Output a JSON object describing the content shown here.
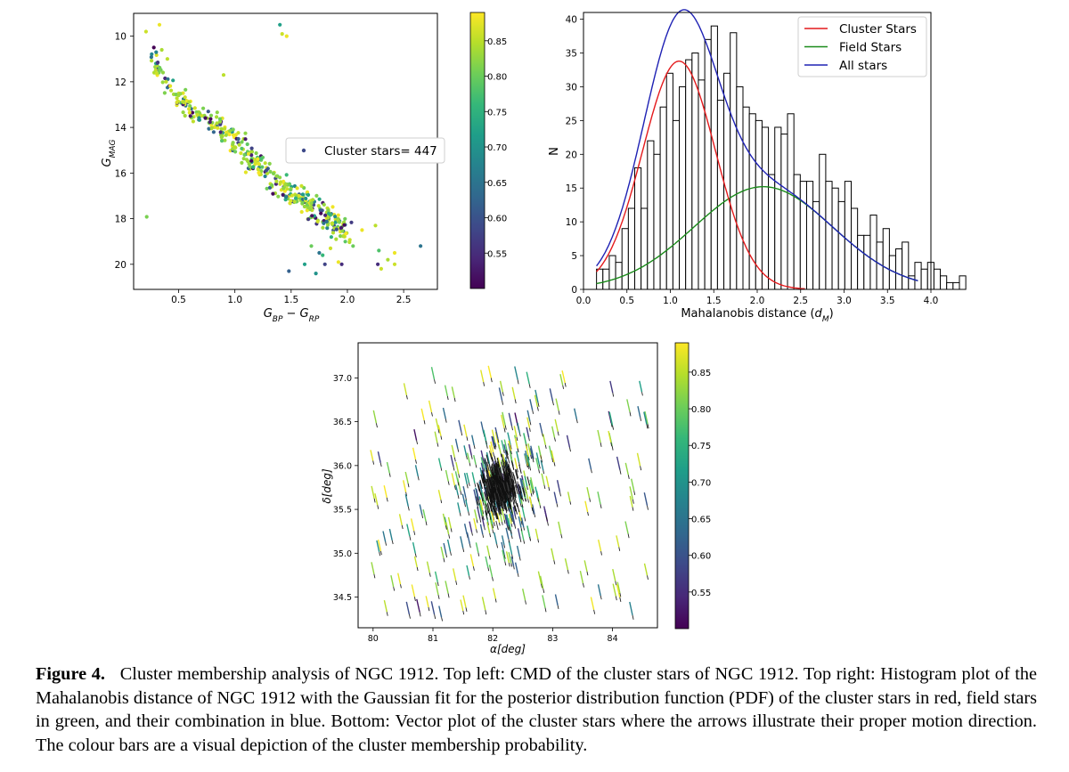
{
  "caption": {
    "label": "Figure 4.",
    "text": "Cluster membership analysis of NGC 1912. Top left: CMD of the cluster stars of NGC 1912. Top right: Histogram plot of the Mahalanobis distance of NGC 1912 with the Gaussian fit for the posterior distribution function (PDF) of the cluster stars in red, field stars in green, and their combination in blue. Bottom: Vector plot of the cluster stars where the arrows illustrate their proper motion direction. The colour bars are a visual depiction of the cluster membership probability."
  },
  "colormap": {
    "name": "viridis",
    "stops": [
      "#440154",
      "#482878",
      "#3e4989",
      "#31688e",
      "#26828e",
      "#1f9e89",
      "#35b779",
      "#6ece58",
      "#b5de2b",
      "#fde725"
    ]
  },
  "chart_data": [
    {
      "type": "scatter",
      "panel": "top-left",
      "xlabel": "G_BP − G_RP",
      "ylabel": "G_MAG",
      "xlim": [
        0.1,
        2.8
      ],
      "ylim": [
        21.1,
        9.0
      ],
      "y_inverted": true,
      "xticks": [
        "0.5",
        "1.0",
        "1.5",
        "2.0",
        "2.5"
      ],
      "yticks": [
        "10",
        "12",
        "14",
        "16",
        "18",
        "20"
      ],
      "legend": {
        "label": "Cluster stars= 447",
        "placement": "center-right"
      },
      "colorbar": {
        "range": [
          0.5,
          0.89
        ],
        "ticks": [
          "0.55",
          "0.60",
          "0.65",
          "0.70",
          "0.75",
          "0.80",
          "0.85"
        ]
      },
      "colour_by": "membership probability",
      "n_points": 447,
      "sequence": {
        "x": [
          0.25,
          0.4,
          0.6,
          0.8,
          1.0,
          1.2,
          1.4,
          1.6,
          1.8,
          2.0
        ],
        "y": [
          10.6,
          12.3,
          13.2,
          13.8,
          14.6,
          15.6,
          16.5,
          17.2,
          17.8,
          18.6
        ]
      },
      "outliers": [
        {
          "x": 0.33,
          "y": 9.5,
          "p": 0.88
        },
        {
          "x": 0.21,
          "y": 9.8,
          "p": 0.86
        },
        {
          "x": 1.4,
          "y": 9.5,
          "p": 0.72
        },
        {
          "x": 1.42,
          "y": 9.9,
          "p": 0.86
        },
        {
          "x": 1.46,
          "y": 10.0,
          "p": 0.88
        },
        {
          "x": 0.28,
          "y": 10.5,
          "p": 0.5
        },
        {
          "x": 0.35,
          "y": 10.6,
          "p": 0.84
        },
        {
          "x": 0.3,
          "y": 10.7,
          "p": 0.68
        },
        {
          "x": 0.4,
          "y": 11.0,
          "p": 0.85
        },
        {
          "x": 0.9,
          "y": 11.7,
          "p": 0.85
        },
        {
          "x": 2.65,
          "y": 19.2,
          "p": 0.65
        },
        {
          "x": 2.42,
          "y": 20.0,
          "p": 0.86
        },
        {
          "x": 2.42,
          "y": 19.5,
          "p": 0.88
        },
        {
          "x": 2.28,
          "y": 19.4,
          "p": 0.78
        },
        {
          "x": 2.27,
          "y": 20.0,
          "p": 0.55
        },
        {
          "x": 2.3,
          "y": 20.2,
          "p": 0.86
        },
        {
          "x": 2.13,
          "y": 18.5,
          "p": 0.88
        },
        {
          "x": 2.25,
          "y": 18.3,
          "p": 0.85
        },
        {
          "x": 1.48,
          "y": 20.3,
          "p": 0.62
        },
        {
          "x": 1.72,
          "y": 20.4,
          "p": 0.7
        },
        {
          "x": 1.62,
          "y": 20.0,
          "p": 0.72
        },
        {
          "x": 1.8,
          "y": 20.0,
          "p": 0.58
        },
        {
          "x": 1.95,
          "y": 20.0,
          "p": 0.55
        },
        {
          "x": 2.05,
          "y": 19.2,
          "p": 0.8
        },
        {
          "x": 1.75,
          "y": 19.5,
          "p": 0.65
        },
        {
          "x": 1.85,
          "y": 19.3,
          "p": 0.86
        },
        {
          "x": 1.92,
          "y": 19.9,
          "p": 0.88
        },
        {
          "x": 1.68,
          "y": 19.2,
          "p": 0.8
        },
        {
          "x": 1.78,
          "y": 19.6,
          "p": 0.76
        },
        {
          "x": 1.9,
          "y": 18.9,
          "p": 0.84
        },
        {
          "x": 2.36,
          "y": 19.8,
          "p": 0.84
        }
      ]
    },
    {
      "type": "bar",
      "panel": "top-right",
      "xlabel": "Mahalanobis distance (d_M)",
      "ylabel": "N",
      "xlim": [
        0.0,
        4.0
      ],
      "ylim": [
        0,
        41
      ],
      "xticks": [
        "0.0",
        "0.5",
        "1.0",
        "1.5",
        "2.0",
        "2.5",
        "3.0",
        "3.5",
        "4.0"
      ],
      "yticks": [
        "0",
        "5",
        "10",
        "15",
        "20",
        "25",
        "30",
        "35",
        "40"
      ],
      "bin_start": 0.15,
      "bin_width": 0.0733,
      "values": [
        3,
        3,
        5,
        4,
        9,
        12,
        18,
        12,
        22,
        20,
        27,
        32,
        25,
        30,
        34,
        35,
        31,
        37,
        39,
        28,
        32,
        38,
        30,
        27,
        26,
        25,
        24,
        17,
        24,
        23,
        26,
        17,
        16,
        16,
        13,
        20,
        16,
        15,
        13,
        16,
        12,
        8,
        8,
        11,
        7,
        9,
        5,
        6,
        7,
        2,
        4,
        3,
        4,
        3,
        2,
        1,
        1,
        2
      ],
      "series": [
        {
          "name": "Cluster Stars",
          "color": "#e41a1c",
          "amp": 33.8,
          "mu": 1.1,
          "sigma": 0.42
        },
        {
          "name": "Field Stars",
          "color": "#1a8a1a",
          "amp": 15.2,
          "mu": 2.07,
          "sigma": 0.8
        },
        {
          "name": "All stars",
          "color": "#1f22b4"
        }
      ],
      "legend": {
        "placement": "top-right"
      }
    },
    {
      "type": "scatter",
      "subtype": "vector",
      "panel": "bottom",
      "xlabel": "α[deg]",
      "ylabel": "δ[deg]",
      "xlim": [
        79.75,
        84.75
      ],
      "ylim": [
        34.15,
        37.4
      ],
      "xticks": [
        "80",
        "81",
        "82",
        "83",
        "84"
      ],
      "yticks": [
        "34.5",
        "35.0",
        "35.5",
        "36.0",
        "36.5",
        "37.0"
      ],
      "colorbar": {
        "range": [
          0.5,
          0.89
        ],
        "ticks": [
          "0.55",
          "0.60",
          "0.65",
          "0.70",
          "0.75",
          "0.80",
          "0.85"
        ]
      },
      "colour_by": "membership probability",
      "cluster_center": [
        82.1,
        35.8
      ],
      "proper_motion_direction": "south, slightly east"
    }
  ]
}
